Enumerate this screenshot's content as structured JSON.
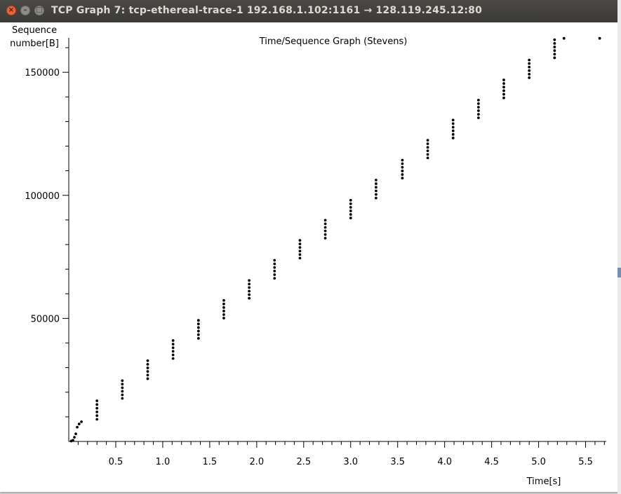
{
  "window": {
    "title": "TCP Graph 7: tcp-ethereal-trace-1 192.168.1.102:1161 → 128.119.245.12:80",
    "close_glyph": "×",
    "minimize_glyph": "–",
    "maximize_glyph": "□"
  },
  "chart_data": {
    "type": "scatter",
    "title": "Time/Sequence Graph (Stevens)",
    "ylabel_line1": "Sequence",
    "ylabel_line2": "number[B]",
    "xlabel": "Time[s]",
    "xlim": [
      0,
      5.72
    ],
    "ylim": [
      0,
      164000
    ],
    "x_major_ticks": [
      0.5,
      1.0,
      1.5,
      2.0,
      2.5,
      3.0,
      3.5,
      4.0,
      4.5,
      5.0,
      5.5
    ],
    "x_tick_labels": [
      "0.5",
      "1.0",
      "1.5",
      "2.0",
      "2.5",
      "3.0",
      "3.5",
      "4.0",
      "4.5",
      "5.0",
      "5.5"
    ],
    "x_minor_step": 0.1,
    "y_major_ticks": [
      50000,
      100000,
      150000
    ],
    "y_tick_labels": [
      "50000",
      "100000",
      "150000"
    ],
    "y_minor_step": 10000,
    "grid": false,
    "legend": "none",
    "point_color": "#000000",
    "bursts": [
      {
        "time": 0.026,
        "start": 160,
        "end": 160,
        "count": 1
      },
      {
        "time": 0.045,
        "start": 500,
        "end": 500,
        "count": 1
      },
      {
        "time": 0.06,
        "start": 1700,
        "end": 1700,
        "count": 1
      },
      {
        "time": 0.075,
        "start": 3100,
        "end": 3100,
        "count": 1
      },
      {
        "time": 0.09,
        "start": 5800,
        "end": 5800,
        "count": 1
      },
      {
        "time": 0.11,
        "start": 7100,
        "end": 7100,
        "count": 1
      },
      {
        "time": 0.135,
        "start": 8000,
        "end": 8000,
        "count": 1
      },
      {
        "time": 0.3,
        "start": 9000,
        "end": 16500,
        "count": 6
      },
      {
        "time": 0.57,
        "start": 17500,
        "end": 24700,
        "count": 6
      },
      {
        "time": 0.84,
        "start": 25500,
        "end": 32800,
        "count": 6
      },
      {
        "time": 1.11,
        "start": 33700,
        "end": 41000,
        "count": 6
      },
      {
        "time": 1.38,
        "start": 41900,
        "end": 49200,
        "count": 6
      },
      {
        "time": 1.65,
        "start": 50100,
        "end": 57300,
        "count": 6
      },
      {
        "time": 1.92,
        "start": 58200,
        "end": 65400,
        "count": 6
      },
      {
        "time": 2.19,
        "start": 66300,
        "end": 73600,
        "count": 6
      },
      {
        "time": 2.46,
        "start": 74500,
        "end": 81700,
        "count": 6
      },
      {
        "time": 2.73,
        "start": 82600,
        "end": 89900,
        "count": 6
      },
      {
        "time": 3.0,
        "start": 90800,
        "end": 98000,
        "count": 6
      },
      {
        "time": 3.27,
        "start": 98900,
        "end": 106200,
        "count": 6
      },
      {
        "time": 3.55,
        "start": 107000,
        "end": 114300,
        "count": 6
      },
      {
        "time": 3.82,
        "start": 115200,
        "end": 122400,
        "count": 6
      },
      {
        "time": 4.09,
        "start": 123300,
        "end": 130600,
        "count": 6
      },
      {
        "time": 4.36,
        "start": 131500,
        "end": 138700,
        "count": 6
      },
      {
        "time": 4.63,
        "start": 139600,
        "end": 146900,
        "count": 6
      },
      {
        "time": 4.9,
        "start": 147800,
        "end": 155000,
        "count": 6
      },
      {
        "time": 5.17,
        "start": 155900,
        "end": 163200,
        "count": 6
      },
      {
        "time": 5.27,
        "start": 163800,
        "end": 163800,
        "count": 1
      },
      {
        "time": 5.65,
        "start": 163800,
        "end": 163800,
        "count": 1
      }
    ]
  }
}
